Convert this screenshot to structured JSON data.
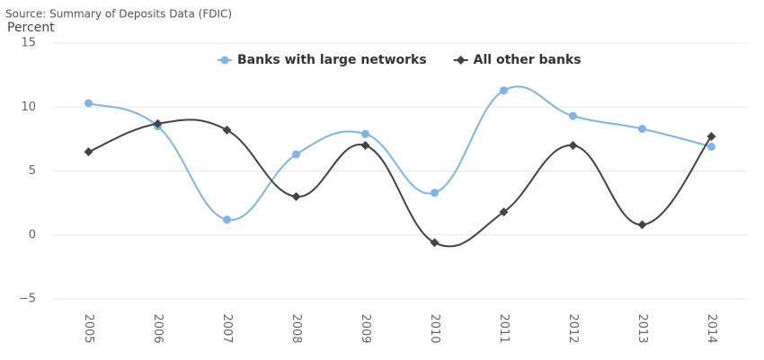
{
  "chart_data": {
    "type": "line",
    "smooth": true,
    "subtitle": "Source: Summary of Deposits Data (FDIC)",
    "y_label": "Percent",
    "categories": [
      "2005",
      "2006",
      "2007",
      "2008",
      "2009",
      "2010",
      "2011",
      "2012",
      "2013",
      "2014"
    ],
    "series": [
      {
        "name": "Banks with large networks",
        "color": "#7cb5ec",
        "marker": "circle",
        "values": [
          10.3,
          8.5,
          1.2,
          6.3,
          7.9,
          3.3,
          11.3,
          9.3,
          8.3,
          6.9
        ]
      },
      {
        "name": "All other banks",
        "color": "#434348",
        "marker": "diamond",
        "values": [
          6.5,
          8.7,
          8.2,
          3.0,
          7.0,
          -0.6,
          1.8,
          7.0,
          0.8,
          7.7
        ]
      }
    ],
    "ylim": [
      -5,
      15
    ],
    "yticks": [
      {
        "value": -5,
        "label": "−5"
      },
      0,
      5,
      10,
      15
    ],
    "grid": true,
    "legend": "top"
  }
}
